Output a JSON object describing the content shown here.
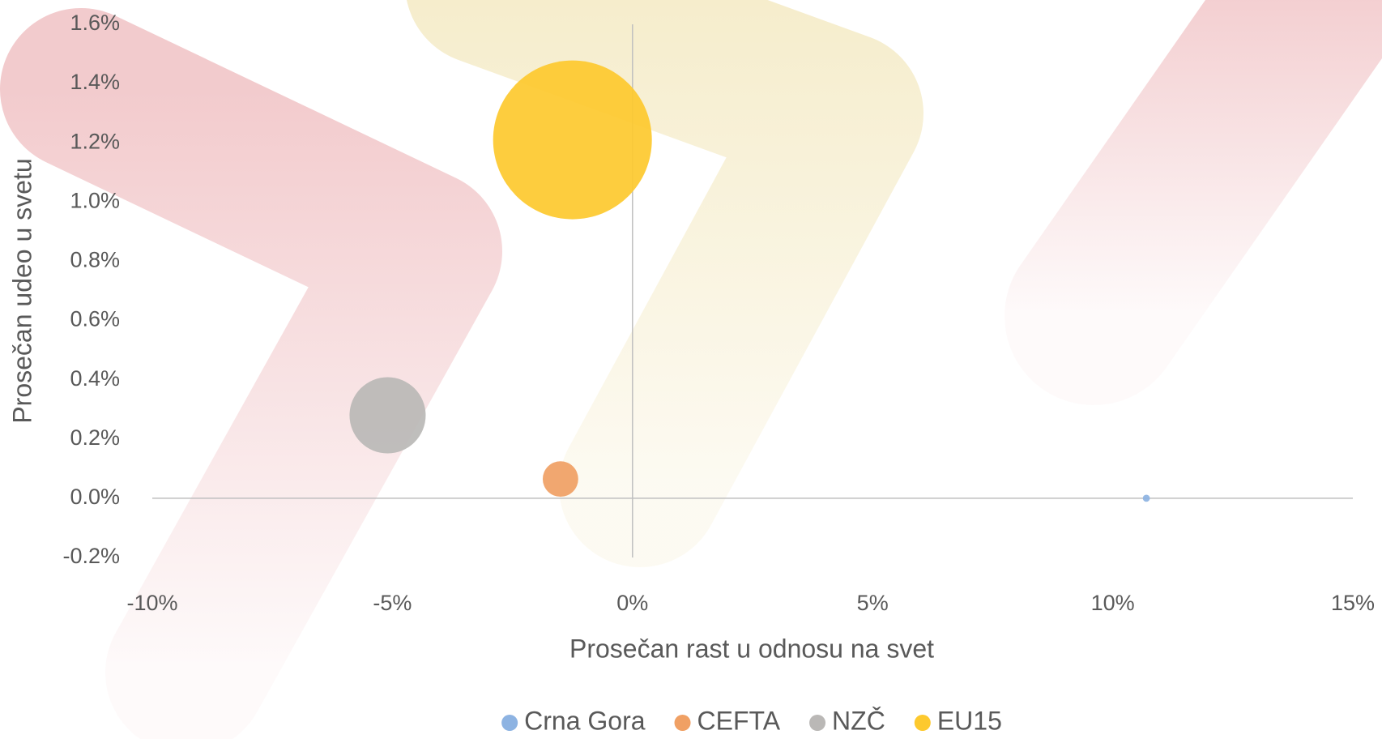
{
  "chart_data": {
    "type": "bubble",
    "x_label": "Prosečan rast u odnosu na svet",
    "y_label": "Prosečan udeo u svetu",
    "xlim": [
      -10,
      15
    ],
    "xticks": [
      {
        "value": -10,
        "label": "-10%"
      },
      {
        "value": -5,
        "label": "-5%"
      },
      {
        "value": 0,
        "label": "0%"
      },
      {
        "value": 5,
        "label": "5%"
      },
      {
        "value": 10,
        "label": "10%"
      },
      {
        "value": 15,
        "label": "15%"
      }
    ],
    "ylim": [
      -0.2,
      1.6
    ],
    "yticks": [
      {
        "value": -0.2,
        "label": "-0.2%"
      },
      {
        "value": 0,
        "label": "0.0%"
      },
      {
        "value": 0.2,
        "label": "0.2%"
      },
      {
        "value": 0.4,
        "label": "0.4%"
      },
      {
        "value": 0.6,
        "label": "0.6%"
      },
      {
        "value": 0.8,
        "label": "0.8%"
      },
      {
        "value": 1.0,
        "label": "1.0%"
      },
      {
        "value": 1.2,
        "label": "1.2%"
      },
      {
        "value": 1.4,
        "label": "1.4%"
      },
      {
        "value": 1.6,
        "label": "1.6%"
      }
    ],
    "legend": "bottom",
    "series": [
      {
        "name": "Crna Gora",
        "color": "#8db3e2",
        "x": [
          10.7
        ],
        "values": [
          0.0
        ],
        "sizes": [
          0.2
        ]
      },
      {
        "name": "CEFTA",
        "color": "#f0a064",
        "x": [
          -1.5
        ],
        "values": [
          0.065
        ],
        "sizes": [
          5
        ]
      },
      {
        "name": "NZČ",
        "color": "#bab8b6",
        "x": [
          -5.1
        ],
        "values": [
          0.28
        ],
        "sizes": [
          23
        ]
      },
      {
        "name": "EU15",
        "color": "#fdc92e",
        "x": [
          -1.25
        ],
        "values": [
          1.21
        ],
        "sizes": [
          100
        ]
      }
    ]
  }
}
